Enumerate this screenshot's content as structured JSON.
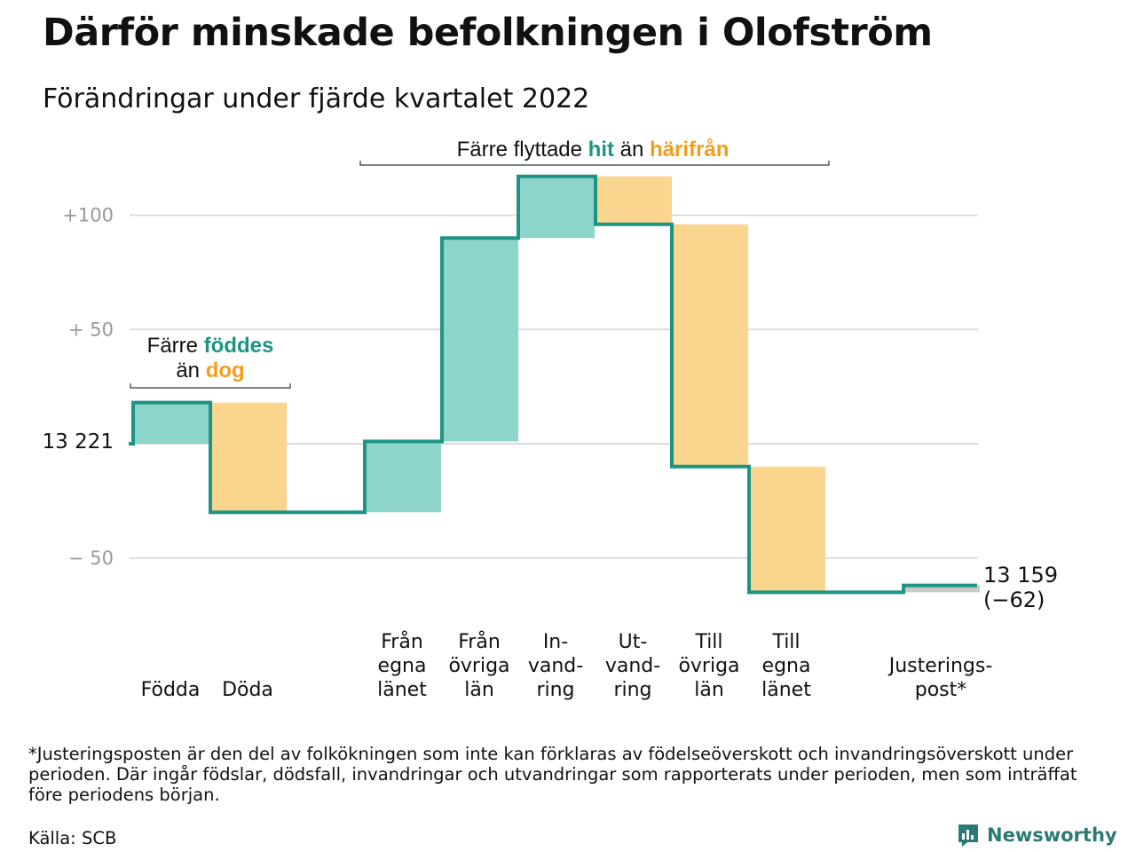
{
  "title": "Därför minskade befolkningen i Olofström",
  "subtitle": "Förändringar under fjärde kvartalet 2022",
  "colors": {
    "increase": "#8dd4cb",
    "decrease": "#fad58e",
    "adjustment": "#c9c9c9",
    "line": "#1d9484",
    "teal_text": "#1d9484",
    "orange_text": "#f29e1c",
    "grid": "#dcdcdc",
    "axis_text": "#999999"
  },
  "annotations": {
    "births": {
      "prefix": "Färre",
      "teal": "föddes",
      "mid": "än",
      "orange": "dog"
    },
    "migration": {
      "prefix": "Färre flyttade",
      "teal": "hit",
      "mid": "än",
      "orange": "härifrån"
    }
  },
  "start_label": "13 221",
  "end_label": {
    "value": "13 159",
    "change": "(−62)"
  },
  "chart_data": {
    "type": "waterfall",
    "start_value": 13221,
    "end_value": 13159,
    "total_change": -62,
    "yticks": [
      {
        "value": 100,
        "label": "+100"
      },
      {
        "value": 50,
        "label": "+ 50"
      },
      {
        "value": 0,
        "label": ""
      },
      {
        "value": -50,
        "label": "− 50"
      }
    ],
    "ylim": [
      -70,
      120
    ],
    "grid": true,
    "series": [
      {
        "label": [
          "Födda"
        ],
        "value": 18,
        "kind": "increase"
      },
      {
        "label": [
          "Döda"
        ],
        "value": -48,
        "kind": "decrease"
      },
      {
        "label": [
          "Från",
          "egna",
          "länet"
        ],
        "value": 31,
        "kind": "increase"
      },
      {
        "label": [
          "Från",
          "övriga",
          "län"
        ],
        "value": 89,
        "kind": "increase"
      },
      {
        "label": [
          "In-",
          "vand-",
          "ring"
        ],
        "value": 27,
        "kind": "increase"
      },
      {
        "label": [
          "Ut-",
          "vand-",
          "ring"
        ],
        "value": -21,
        "kind": "decrease"
      },
      {
        "label": [
          "Till",
          "övriga",
          "län"
        ],
        "value": -106,
        "kind": "decrease"
      },
      {
        "label": [
          "Till",
          "egna",
          "länet"
        ],
        "value": -55,
        "kind": "decrease"
      },
      {
        "label": [
          "Justerings-",
          "post*"
        ],
        "value": 3,
        "kind": "adjustment"
      }
    ]
  },
  "footnote": "*Justeringsposten är den del av folkökningen som inte kan förklaras av födelseöverskott och invandringsöverskott under perioden. Där ingår födslar, dödsfall, invandringar och utvandringar som rapporterats under perioden, men som inträffat före periodens början.",
  "source": "Källa: SCB",
  "brand": "Newsworthy"
}
